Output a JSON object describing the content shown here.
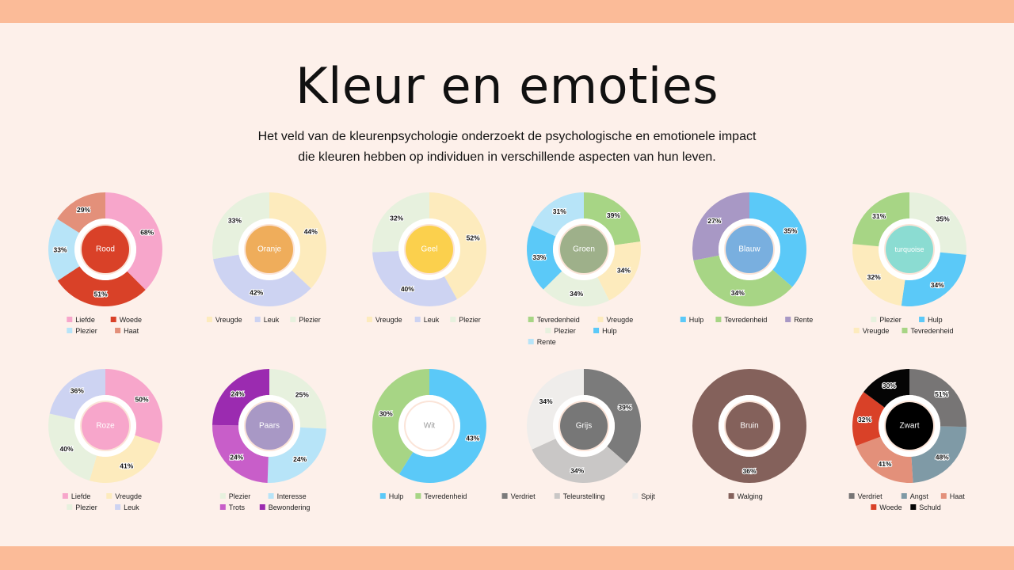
{
  "page": {
    "title": "Kleur en emoties",
    "subtitle_line1": "Het veld van de kleurenpsychologie onderzoekt de psychologische en emotionele impact",
    "subtitle_line2": "die kleuren hebben op individuen in verschillende aspecten van hun leven.",
    "top_band_color": "#fbbb98",
    "background_color": "#fdf0ea"
  },
  "chart_data": [
    {
      "type": "pie",
      "center_label": "Rood",
      "center_color": "#d94128",
      "center_text_color": "#ffffff",
      "categories": [
        "Liefde",
        "Woede",
        "Plezier",
        "Haat"
      ],
      "values": [
        68,
        51,
        33,
        29
      ],
      "slice_colors": [
        "#f7a6cb",
        "#d94128",
        "#b7e4f8",
        "#e3907a"
      ],
      "labels": [
        "68%",
        "51%",
        "33%",
        "29%"
      ],
      "legend_rows": [
        [
          "Liefde",
          "Woede"
        ],
        [
          "Plezier",
          "Haat"
        ]
      ]
    },
    {
      "type": "pie",
      "center_label": "Oranje",
      "center_color": "#efad5b",
      "center_text_color": "#ffffff",
      "categories": [
        "Vreugde",
        "Leuk",
        "Plezier"
      ],
      "values": [
        44,
        42,
        33
      ],
      "slice_colors": [
        "#fdebbd",
        "#cdd3f2",
        "#e7f1de"
      ],
      "labels": [
        "44%",
        "42%",
        "33%"
      ],
      "legend_rows": [
        [
          "Vreugde",
          "Leuk",
          "Plezier"
        ]
      ]
    },
    {
      "type": "pie",
      "center_label": "Geel",
      "center_color": "#fbd04d",
      "center_text_color": "#ffffff",
      "categories": [
        "Vreugde",
        "Leuk",
        "Plezier"
      ],
      "values": [
        52,
        40,
        32
      ],
      "slice_colors": [
        "#fdebbd",
        "#cdd3f2",
        "#e7f1de"
      ],
      "labels": [
        "52%",
        "40%",
        "32%"
      ],
      "legend_rows": [
        [
          "Vreugde",
          "Leuk",
          "Plezier"
        ]
      ]
    },
    {
      "type": "pie",
      "center_label": "Groen",
      "center_color": "#9eb08a",
      "center_text_color": "#ffffff",
      "categories": [
        "Tevredenheid",
        "Vreugde",
        "Plezier",
        "Hulp",
        "Rente"
      ],
      "values": [
        39,
        34,
        34,
        33,
        31
      ],
      "slice_colors": [
        "#a7d585",
        "#fdebbd",
        "#e7f1de",
        "#5bc9f8",
        "#b7e4f8"
      ],
      "labels": [
        "39%",
        "34%",
        "34%",
        "33%",
        "31%"
      ],
      "legend_rows": [
        [
          "Tevredenheid",
          "Vreugde"
        ],
        [
          "Plezier",
          "Hulp"
        ],
        [
          "Rente"
        ]
      ]
    },
    {
      "type": "pie",
      "center_label": "Blauw",
      "center_color": "#79afdf",
      "center_text_color": "#ffffff",
      "categories": [
        "Hulp",
        "Tevredenheid",
        "Rente"
      ],
      "values": [
        35,
        34,
        27
      ],
      "slice_colors": [
        "#5bc9f8",
        "#a7d585",
        "#a898c5"
      ],
      "labels": [
        "35%",
        "34%",
        "27%"
      ],
      "legend_rows": [
        [
          "Hulp",
          "Tevredenheid",
          "Rente"
        ]
      ]
    },
    {
      "type": "pie",
      "center_label": "turquoise",
      "center_color": "#8bdcd2",
      "center_text_color": "#ffffff",
      "categories": [
        "Plezier",
        "Hulp",
        "Vreugde",
        "Tevredenheid"
      ],
      "values": [
        35,
        34,
        32,
        31
      ],
      "slice_colors": [
        "#e7f1de",
        "#5bc9f8",
        "#fdebbd",
        "#a7d585"
      ],
      "labels": [
        "35%",
        "34%",
        "32%",
        "31%"
      ],
      "legend_rows": [
        [
          "Plezier",
          "Hulp"
        ],
        [
          "Vreugde",
          "Tevredenheid"
        ]
      ]
    },
    {
      "type": "pie",
      "center_label": "Roze",
      "center_color": "#f7a6cb",
      "center_text_color": "#ffffff",
      "categories": [
        "Liefde",
        "Vreugde",
        "Plezier",
        "Leuk"
      ],
      "values": [
        50,
        41,
        40,
        36
      ],
      "slice_colors": [
        "#f7a6cb",
        "#fdebbd",
        "#e7f1de",
        "#cdd3f2"
      ],
      "labels": [
        "50%",
        "41%",
        "40%",
        "36%"
      ],
      "legend_rows": [
        [
          "Liefde",
          "Vreugde"
        ],
        [
          "Plezier",
          "Leuk"
        ]
      ]
    },
    {
      "type": "pie",
      "center_label": "Paars",
      "center_color": "#a898c5",
      "center_text_color": "#ffffff",
      "categories": [
        "Plezier",
        "Interesse",
        "Trots",
        "Bewondering"
      ],
      "values": [
        25,
        24,
        24,
        24
      ],
      "slice_colors": [
        "#e7f1de",
        "#b7e4f8",
        "#c85ec9",
        "#9b2bb0"
      ],
      "labels": [
        "25%",
        "24%",
        "24%",
        "24%"
      ],
      "legend_rows": [
        [
          "Plezier",
          "Interesse"
        ],
        [
          "Trots",
          "Bewondering"
        ]
      ]
    },
    {
      "type": "pie",
      "center_label": "Wit",
      "center_color": "#ffffff",
      "center_text_color": "#9a9a9a",
      "categories": [
        "Hulp",
        "Tevredenheid"
      ],
      "values": [
        43,
        30
      ],
      "slice_colors": [
        "#5bc9f8",
        "#a7d585"
      ],
      "labels": [
        "43%",
        "30%"
      ],
      "legend_rows": [
        [
          "Hulp",
          "Tevredenheid"
        ]
      ]
    },
    {
      "type": "pie",
      "center_label": "Grijs",
      "center_color": "#777777",
      "center_text_color": "#ffffff",
      "categories": [
        "Verdriet",
        "Teleurstelling",
        "Spijt"
      ],
      "values": [
        39,
        34,
        34
      ],
      "slice_colors": [
        "#7b7b7b",
        "#c9c7c6",
        "#efedeb"
      ],
      "labels": [
        "39%",
        "34%",
        "34%"
      ],
      "legend_rows": [
        [
          "Verdriet",
          "Teleurstelling",
          "Spijt"
        ]
      ]
    },
    {
      "type": "pie",
      "center_label": "Bruin",
      "center_color": "#84615b",
      "center_text_color": "#ffffff",
      "categories": [
        "Walging"
      ],
      "values": [
        36
      ],
      "slice_colors": [
        "#84615b"
      ],
      "labels": [
        "36%"
      ],
      "legend_rows": [
        [
          "Walging"
        ]
      ]
    },
    {
      "type": "pie",
      "center_label": "Zwart",
      "center_color": "#000000",
      "center_text_color": "#ffffff",
      "categories": [
        "Verdriet",
        "Angst",
        "Haat",
        "Woede",
        "Schuld"
      ],
      "values": [
        51,
        48,
        41,
        32,
        30
      ],
      "slice_colors": [
        "#777575",
        "#7f9aa6",
        "#e3907a",
        "#d94128",
        "#050505"
      ],
      "labels": [
        "51%",
        "48%",
        "41%",
        "32%",
        "30%"
      ],
      "legend_rows": [
        [
          "Verdriet",
          "Angst",
          "Haat"
        ],
        [
          "Woede",
          "Schuld"
        ]
      ]
    }
  ]
}
